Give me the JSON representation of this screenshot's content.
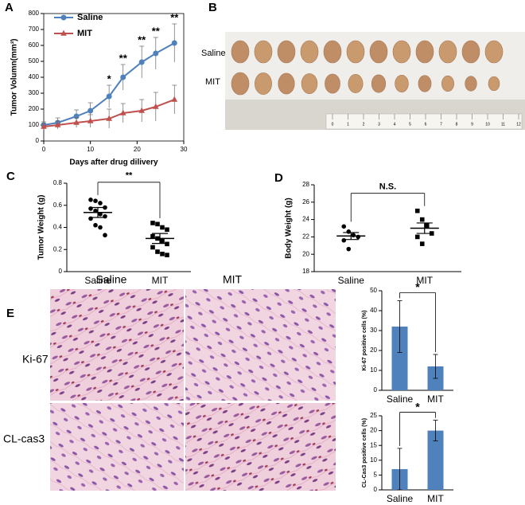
{
  "panels": [
    "A",
    "B",
    "C",
    "D",
    "E"
  ],
  "photo": {
    "rows": [
      "Saline",
      "MIT"
    ],
    "ruler": [
      0,
      1,
      2,
      3,
      4,
      5,
      6,
      7,
      8,
      9,
      10,
      11,
      12
    ]
  },
  "histology": {
    "columns": [
      "Saline",
      "MIT"
    ],
    "rows": [
      "Ki-67",
      "CL-cas3"
    ]
  },
  "chart_data": [
    {
      "type": "line",
      "xlabel": "Days after drug dilivery",
      "ylabel": "Tumor Volumn(mm³)",
      "x": [
        0,
        3,
        7,
        10,
        14,
        17,
        21,
        24,
        28
      ],
      "series": [
        {
          "name": "Saline",
          "color": "#4f81bd",
          "marker": "circle",
          "values": [
            100,
            115,
            155,
            190,
            280,
            400,
            495,
            550,
            615
          ],
          "errors": [
            20,
            30,
            40,
            50,
            70,
            80,
            100,
            100,
            120
          ]
        },
        {
          "name": "MIT",
          "color": "#c0504d",
          "marker": "triangle",
          "values": [
            90,
            100,
            115,
            125,
            140,
            175,
            190,
            215,
            260
          ],
          "errors": [
            20,
            25,
            30,
            40,
            60,
            60,
            70,
            90,
            90
          ]
        }
      ],
      "xlim": [
        0,
        30
      ],
      "xticks": [
        0,
        10,
        20,
        30
      ],
      "ylim": [
        0,
        800
      ],
      "yticks": [
        0,
        100,
        200,
        300,
        400,
        500,
        600,
        700,
        800
      ],
      "annotations": [
        {
          "x": 14,
          "text": "*"
        },
        {
          "x": 17,
          "text": "**"
        },
        {
          "x": 21,
          "text": "**"
        },
        {
          "x": 24,
          "text": "**"
        },
        {
          "x": 28,
          "text": "**"
        }
      ]
    },
    {
      "type": "dot",
      "ylabel": "Tumor Weight (g)",
      "categories": [
        "Saline",
        "MIT"
      ],
      "groups": [
        {
          "marker": "circle",
          "values": [
            0.65,
            0.64,
            0.62,
            0.58,
            0.57,
            0.55,
            0.52,
            0.5,
            0.48,
            0.42,
            0.4,
            0.33
          ],
          "mean": 0.535,
          "sem": 0.045
        },
        {
          "marker": "square",
          "values": [
            0.44,
            0.43,
            0.4,
            0.38,
            0.32,
            0.3,
            0.28,
            0.25,
            0.22,
            0.18,
            0.16,
            0.15
          ],
          "mean": 0.3,
          "sem": 0.045
        }
      ],
      "ylim": [
        0,
        0.8
      ],
      "yticks": [
        0,
        0.2,
        0.4,
        0.6,
        0.8
      ],
      "annotation": "**"
    },
    {
      "type": "dot",
      "ylabel": "Body Weight (g)",
      "categories": [
        "Saline",
        "MIT"
      ],
      "groups": [
        {
          "marker": "circle",
          "values": [
            23.2,
            22.6,
            22.2,
            22.0,
            21.6,
            20.6
          ],
          "mean": 22.1,
          "sem": 0.4
        },
        {
          "marker": "square",
          "values": [
            25.0,
            24.0,
            23.3,
            22.4,
            22.0,
            21.2
          ],
          "mean": 23.0,
          "sem": 0.6
        }
      ],
      "ylim": [
        18,
        28
      ],
      "yticks": [
        18,
        20,
        22,
        24,
        26,
        28
      ],
      "annotation": "N.S."
    },
    {
      "type": "bar",
      "ylabel": "Ki-67 positive cells (%)",
      "categories": [
        "Saline",
        "MIT"
      ],
      "values": [
        32,
        12
      ],
      "errors": [
        13,
        6
      ],
      "color": "#4f81bd",
      "ylim": [
        0,
        50
      ],
      "yticks": [
        0,
        10,
        20,
        30,
        40,
        50
      ],
      "annotation": "*"
    },
    {
      "type": "bar",
      "ylabel": "CL-Cas3 positive cells (%)",
      "categories": [
        "Saline",
        "MIT"
      ],
      "values": [
        7,
        20
      ],
      "errors": [
        7,
        3.5
      ],
      "color": "#4f81bd",
      "ylim": [
        0,
        25
      ],
      "yticks": [
        0,
        5,
        10,
        15,
        20,
        25
      ],
      "annotation": "*"
    }
  ]
}
